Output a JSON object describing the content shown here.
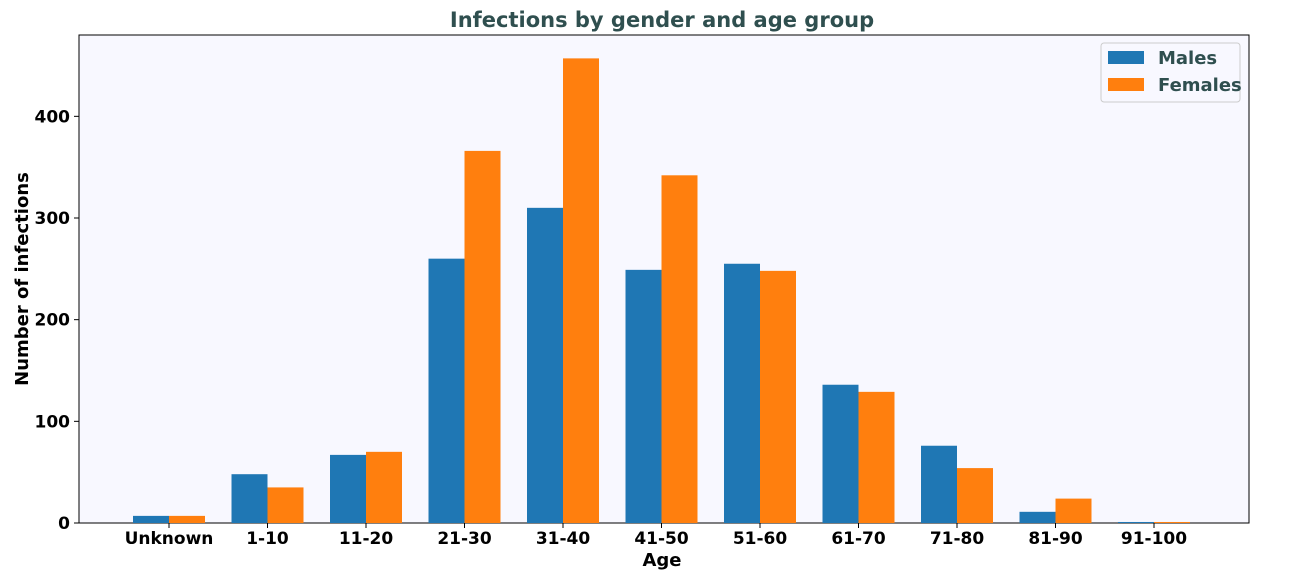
{
  "chart_data": {
    "type": "bar",
    "title": "Infections by gender and age group",
    "xlabel": "Age",
    "ylabel": "Number of infections",
    "categories": [
      "Unknown",
      "1-10",
      "11-20",
      "21-30",
      "31-40",
      "41-50",
      "51-60",
      "61-70",
      "71-80",
      "81-90",
      "91-100"
    ],
    "series": [
      {
        "name": "Males",
        "values": [
          7,
          48,
          67,
          260,
          310,
          249,
          255,
          136,
          76,
          11,
          1
        ]
      },
      {
        "name": "Females",
        "values": [
          7,
          35,
          70,
          366,
          457,
          342,
          248,
          129,
          54,
          24,
          1
        ]
      }
    ],
    "ylim": [
      0,
      480
    ],
    "yticks": [
      0,
      100,
      200,
      300,
      400
    ],
    "grid": false,
    "legend_position": "top-right",
    "colors": {
      "Males": "#1f77b4",
      "Females": "#ff7f0e",
      "plot_background": "#f8f8ff",
      "title": "#2f4f4f"
    }
  }
}
